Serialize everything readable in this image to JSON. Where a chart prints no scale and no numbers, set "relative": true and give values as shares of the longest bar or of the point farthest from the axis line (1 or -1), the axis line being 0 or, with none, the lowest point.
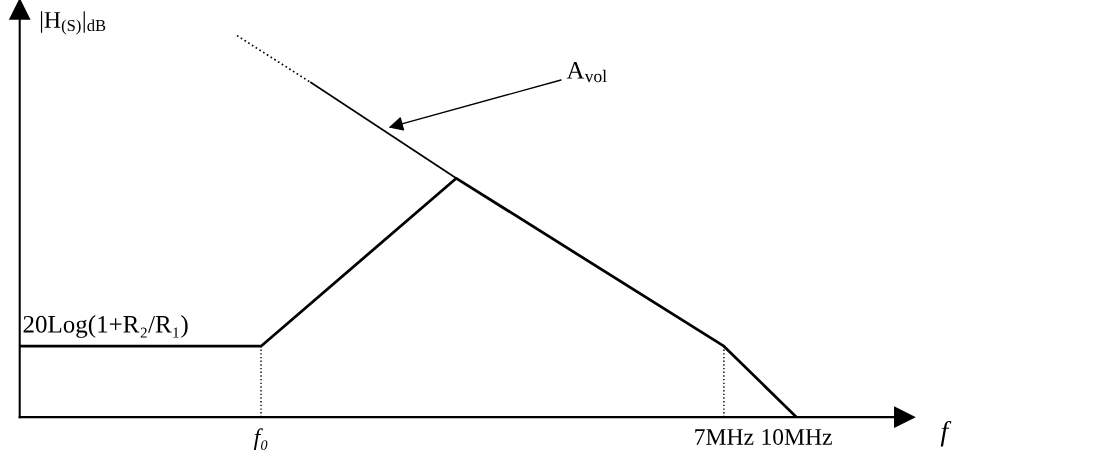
{
  "chart_data": {
    "type": "line",
    "relative": true,
    "log": "x",
    "xlabel": "f",
    "ylabel": "|H$_{(S)}$|$_{dB}$",
    "xlim": [
      0.22,
      17
    ],
    "xticks": [
      {
        "value": 0.72,
        "label": "f₀"
      },
      {
        "value": 7,
        "label": "7MHz"
      },
      {
        "value": 10,
        "label": "10MHz"
      }
    ],
    "series": [
      {
        "color": "#000000",
        "line_style": "solid",
        "x": [
          0.22,
          0.72,
          1.88,
          7,
          10
        ],
        "values": [
          0.186,
          0.186,
          0.626,
          0.186,
          0
        ]
      },
      {
        "color": "#000000",
        "line_style": "dotted",
        "x": [
          0.64,
          0.92
        ],
        "values": [
          1.0,
          0.877
        ]
      },
      {
        "color": "#000000",
        "line_style": "solid",
        "x": [
          0.92,
          1.88
        ],
        "values": [
          0.877,
          0.626
        ]
      }
    ],
    "ref_lines": [
      {
        "axis": "x",
        "value": 0.72,
        "line_style": "dotted",
        "color": "#000000"
      },
      {
        "axis": "x",
        "value": 7,
        "line_style": "dotted",
        "color": "#000000"
      }
    ],
    "annotations": [
      {
        "text": "A$_{vol}$",
        "x": 1.33,
        "y": 0.757
      },
      {
        "text": "20Log(1+R₂/R₁)",
        "x": 0.22,
        "y": 0.186
      }
    ],
    "grid": false,
    "legend": false,
    "marker": "none"
  }
}
